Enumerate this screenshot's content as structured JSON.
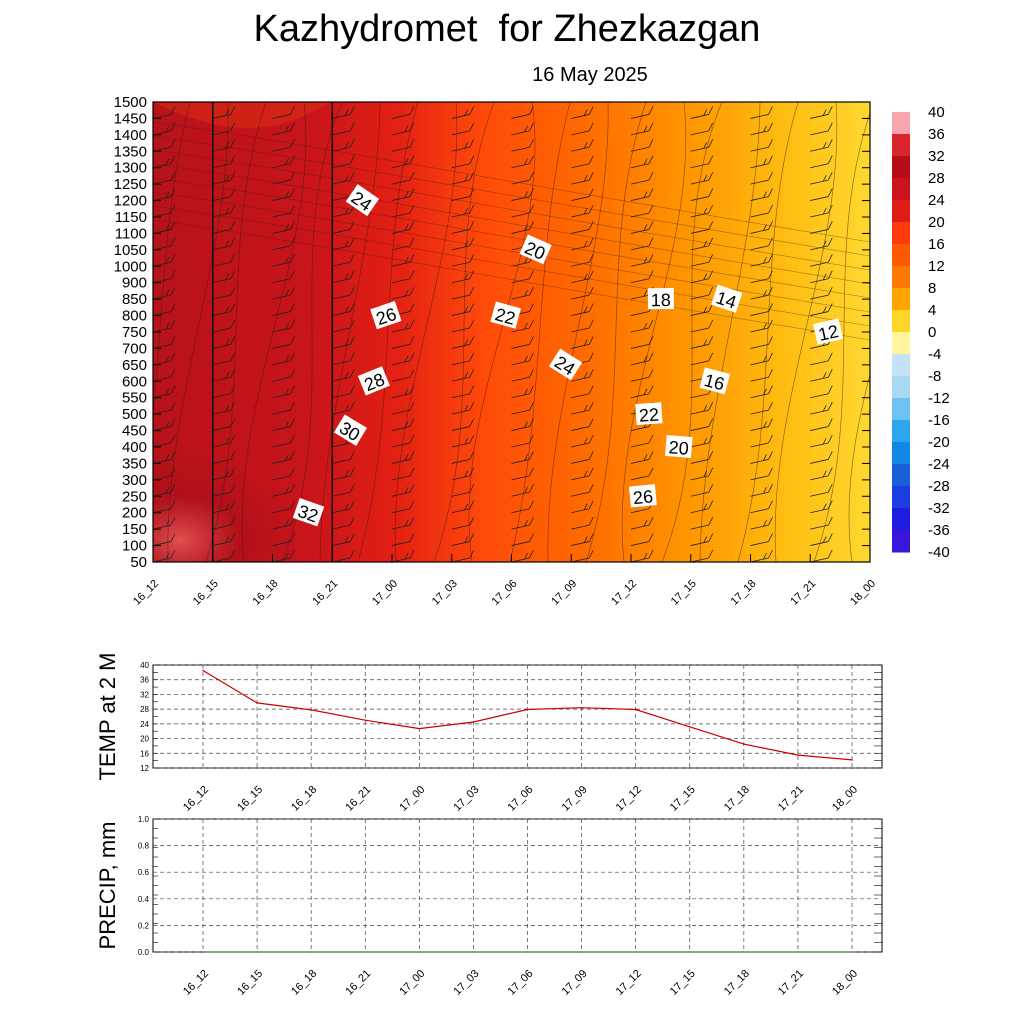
{
  "header": {
    "title": "Kazhydromet  for Zhezkazgan",
    "date": "16 May 2025"
  },
  "colors": {
    "hot": "#b8121b",
    "warm": "#ff6a00",
    "mild": "#ffd52a",
    "line": "#cc0000",
    "grid": "#555555"
  },
  "chart_data": [
    {
      "type": "heatmap",
      "title": "",
      "x_ticks": [
        "16_12",
        "16_15",
        "16_18",
        "16_21",
        "17_00",
        "17_03",
        "17_06",
        "17_09",
        "17_12",
        "17_15",
        "17_18",
        "17_21",
        "18_00"
      ],
      "y_ticks": [
        50,
        100,
        150,
        200,
        250,
        300,
        350,
        400,
        450,
        500,
        550,
        600,
        650,
        700,
        750,
        800,
        850,
        900,
        1000,
        1050,
        1100,
        1150,
        1200,
        1250,
        1300,
        1350,
        1400,
        1450,
        1500
      ],
      "legend": {
        "placement": "right",
        "labels": [
          "40",
          "36",
          "32",
          "28",
          "24",
          "20",
          "16",
          "12",
          "8",
          "4",
          "0",
          "-4",
          "-8",
          "-12",
          "-16",
          "-20",
          "-24",
          "-28",
          "-32",
          "-36",
          "-40"
        ]
      },
      "contour_labels": [
        {
          "text": "24",
          "time": 3.5,
          "level": 1200
        },
        {
          "text": "20",
          "time": 6.4,
          "level": 1050
        },
        {
          "text": "26",
          "time": 3.9,
          "level": 800
        },
        {
          "text": "22",
          "time": 5.9,
          "level": 800
        },
        {
          "text": "18",
          "time": 8.5,
          "level": 850
        },
        {
          "text": "14",
          "time": 9.6,
          "level": 850
        },
        {
          "text": "12",
          "time": 11.3,
          "level": 750
        },
        {
          "text": "24",
          "time": 6.9,
          "level": 650
        },
        {
          "text": "28",
          "time": 3.7,
          "level": 600
        },
        {
          "text": "16",
          "time": 9.4,
          "level": 600
        },
        {
          "text": "22",
          "time": 8.3,
          "level": 500
        },
        {
          "text": "30",
          "time": 3.3,
          "level": 450
        },
        {
          "text": "20",
          "time": 8.8,
          "level": 400
        },
        {
          "text": "26",
          "time": 8.2,
          "level": 250
        },
        {
          "text": "32",
          "time": 2.6,
          "level": 200
        }
      ]
    },
    {
      "type": "line",
      "ylabel": "TEMP at 2 M",
      "x": [
        "16_12",
        "16_15",
        "16_18",
        "16_21",
        "17_00",
        "17_03",
        "17_06",
        "17_09",
        "17_12",
        "17_15",
        "17_18",
        "17_21",
        "18_00"
      ],
      "y_ticks": [
        "12",
        "16",
        "20",
        "24",
        "28",
        "32",
        "36",
        "40"
      ],
      "ylim": [
        12,
        40
      ],
      "grid": true,
      "series": [
        {
          "values": [
            38.5,
            29.7,
            27.8,
            25.0,
            22.7,
            24.5,
            27.9,
            28.4,
            27.9,
            23.2,
            18.5,
            15.5,
            14.2
          ]
        }
      ]
    },
    {
      "type": "line",
      "ylabel": "PRECIP, mm",
      "x": [
        "16_12",
        "16_15",
        "16_18",
        "16_21",
        "17_00",
        "17_03",
        "17_06",
        "17_09",
        "17_12",
        "17_15",
        "17_18",
        "17_21",
        "18_00"
      ],
      "y_ticks": [
        "0.0",
        "0.2",
        "0.4",
        "0.6",
        "0.8",
        "1.0"
      ],
      "ylim": [
        0,
        1
      ],
      "grid": true,
      "series": [
        {
          "values": [
            0,
            0,
            0,
            0,
            0,
            0,
            0,
            0,
            0,
            0,
            0,
            0,
            0
          ]
        }
      ]
    }
  ]
}
